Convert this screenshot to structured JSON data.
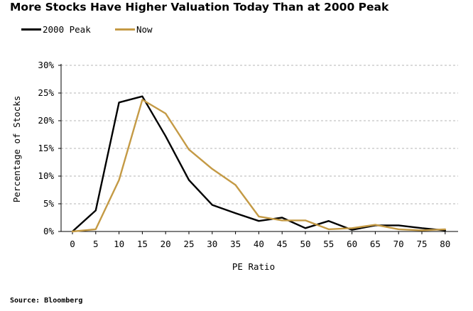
{
  "chart_data": {
    "type": "line",
    "title": "More Stocks Have Higher Valuation Today Than at 2000 Peak",
    "xlabel": "PE Ratio",
    "ylabel": "Percentage of Stocks",
    "x": [
      0,
      5,
      10,
      15,
      20,
      25,
      30,
      35,
      40,
      45,
      50,
      55,
      60,
      65,
      70,
      75,
      80
    ],
    "x_tick_labels": [
      "0",
      "5",
      "10",
      "15",
      "20",
      "25",
      "30",
      "35",
      "40",
      "45",
      "50",
      "55",
      "60",
      "65",
      "70",
      "75",
      "80"
    ],
    "ylim": [
      0,
      30
    ],
    "y_ticks": [
      0,
      5,
      10,
      15,
      20,
      25,
      30
    ],
    "y_tick_labels": [
      "0%",
      "5%",
      "10%",
      "15%",
      "20%",
      "25%",
      "30%"
    ],
    "grid": "horizontal dashed",
    "legend_position": "top-left",
    "series": [
      {
        "name": "2000 Peak",
        "color": "#000000",
        "values": [
          0.0,
          3.8,
          23.3,
          24.4,
          17.2,
          9.3,
          4.8,
          3.3,
          1.9,
          2.5,
          0.6,
          1.9,
          0.3,
          1.1,
          1.1,
          0.6,
          0.2
        ]
      },
      {
        "name": "Now",
        "color": "#C49A45",
        "values": [
          0.0,
          0.4,
          9.3,
          23.8,
          21.3,
          14.8,
          11.3,
          8.4,
          2.7,
          2.0,
          2.0,
          0.4,
          0.6,
          1.2,
          0.4,
          0.2,
          0.4
        ]
      }
    ]
  },
  "source": "Source: Bloomberg"
}
